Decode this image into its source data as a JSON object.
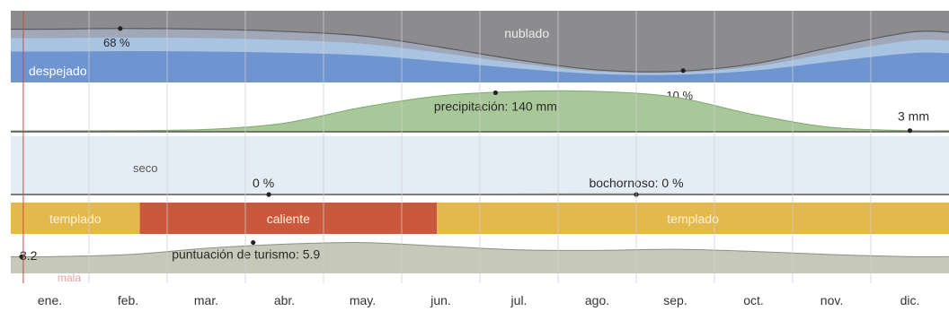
{
  "chart_data": {
    "type": "area",
    "months": [
      "ene.",
      "feb.",
      "mar.",
      "abr.",
      "may.",
      "jun.",
      "jul.",
      "ago.",
      "sep.",
      "oct.",
      "nov.",
      "dic."
    ],
    "panels": {
      "clouds": {
        "top_label": "nublado",
        "bottom_label": "despejado",
        "clear_sky_percent": [
          66,
          67,
          66,
          63,
          57,
          42,
          25,
          12,
          10,
          20,
          42,
          62
        ],
        "annotations": [
          {
            "text": "68 %",
            "month": 1.4,
            "value": 68
          },
          {
            "text": "10 %",
            "month": 8.6,
            "value": 10
          }
        ]
      },
      "precipitation": {
        "unit": "mm",
        "values_mm": [
          3,
          4,
          8,
          30,
          85,
          125,
          140,
          140,
          120,
          60,
          15,
          4
        ],
        "annotations": [
          {
            "text": "precipitación: 140 mm",
            "month": 6.2,
            "value": 140
          },
          {
            "text": "3 mm",
            "month": 11.5,
            "value": 3
          }
        ]
      },
      "humidity": {
        "label_dry": "seco",
        "muggy_percent": [
          0,
          0,
          0,
          0,
          0,
          0,
          0.2,
          0.3,
          0.2,
          0,
          0,
          0
        ],
        "annotations": [
          {
            "text": "0 %",
            "month": 3.3,
            "value": 0
          },
          {
            "text": "bochornoso: 0 %",
            "month": 8.0,
            "value": 0
          }
        ]
      },
      "temperature": {
        "segments": [
          {
            "label": "templado",
            "start": 0,
            "end": 1.65,
            "color": "#e3b94c"
          },
          {
            "label": "caliente",
            "start": 1.65,
            "end": 5.45,
            "color": "#c9583c"
          },
          {
            "label": "templado",
            "start": 5.45,
            "end": 12,
            "color": "#e3b94c"
          }
        ]
      },
      "tourism": {
        "bottom_label": "mala",
        "scores": [
          3.2,
          3.6,
          4.8,
          5.6,
          5.9,
          5.2,
          4.5,
          4.4,
          4.6,
          4.2,
          3.6,
          3.2
        ],
        "annotations": [
          {
            "text": "puntuación de turismo: 5.9",
            "month": 3.1,
            "value": 5.9
          },
          {
            "text": "3.2",
            "month": 0.05,
            "value": 3.2
          }
        ]
      }
    },
    "today_marker_month": 0.16
  },
  "colors": {
    "cloud_band": "#8c8c8f",
    "cloud_mid": "#a0a7b6",
    "clear_dark": "#6f95d0",
    "clear_light": "#a9c3e3",
    "precip_fill": "#a9c89a",
    "humid_bg": "#e3edf6",
    "temp_warm": "#e3b94c",
    "temp_hot": "#c9583c",
    "tourism_fill": "#c6c8b9",
    "today_line": "#d04848",
    "grid": "#cfcfcf"
  }
}
